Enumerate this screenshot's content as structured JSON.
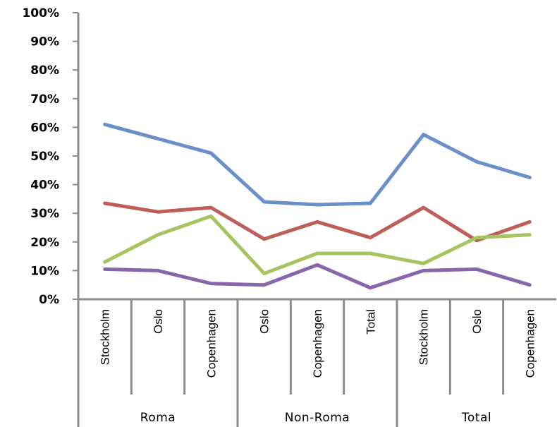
{
  "chart_data": {
    "type": "line",
    "title": "",
    "xlabel": "",
    "ylabel": "",
    "ylim": [
      0,
      100
    ],
    "y_tick_labels": [
      "0%",
      "10%",
      "20%",
      "30%",
      "40%",
      "50%",
      "60%",
      "70%",
      "80%",
      "90%",
      "100%"
    ],
    "categories": [
      "Stockholm",
      "Oslo",
      "Copenhagen",
      "Oslo",
      "Copenhagen",
      "Total",
      "Stockholm",
      "Oslo",
      "Copenhagen"
    ],
    "groups": [
      {
        "label": "Roma",
        "span": 3
      },
      {
        "label": "Non-Roma",
        "span": 3
      },
      {
        "label": "Total",
        "span": 3
      }
    ],
    "grid": false,
    "legend": "none",
    "series": [
      {
        "color": "#6B8FC8",
        "values": [
          61,
          56,
          51,
          34,
          33,
          33.5,
          57.5,
          48,
          42.5
        ]
      },
      {
        "color": "#BE5E59",
        "values": [
          33.5,
          30.5,
          32,
          21,
          27,
          21.5,
          32,
          20.5,
          27
        ]
      },
      {
        "color": "#A6C460",
        "values": [
          13,
          22.5,
          29,
          9,
          16,
          16,
          12.5,
          21.5,
          22.5
        ]
      },
      {
        "color": "#8767A9",
        "values": [
          10.5,
          10,
          5.5,
          5,
          12,
          4,
          10,
          10.5,
          5
        ]
      }
    ]
  }
}
